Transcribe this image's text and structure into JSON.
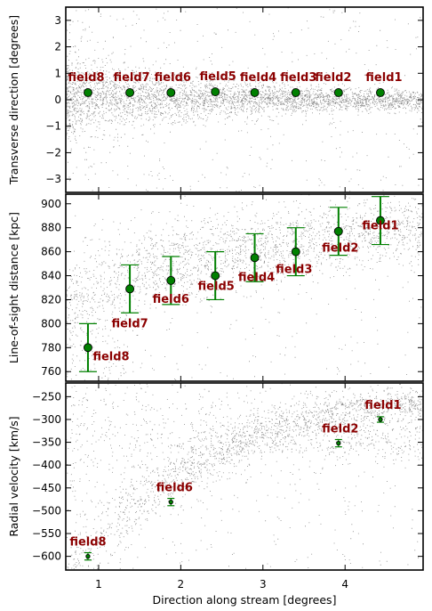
{
  "colors": {
    "field": "#8b0000",
    "marker": "#008000",
    "error": "#008000",
    "stars": "#8c8c8c"
  },
  "chart_data": [
    {
      "type": "scatter",
      "panel": "top",
      "ylabel": "Transverse direction [degrees]",
      "xlim": [
        0.6,
        4.95
      ],
      "ylim": [
        -3.5,
        3.5
      ],
      "yticks": [
        -3,
        -2,
        -1,
        0,
        1,
        2,
        3
      ],
      "points": [
        {
          "label": "field8",
          "x": 0.87,
          "y": 0.27
        },
        {
          "label": "field7",
          "x": 1.38,
          "y": 0.27
        },
        {
          "label": "field6",
          "x": 1.88,
          "y": 0.27
        },
        {
          "label": "field5",
          "x": 2.42,
          "y": 0.3
        },
        {
          "label": "field4",
          "x": 2.9,
          "y": 0.27
        },
        {
          "label": "field3",
          "x": 3.4,
          "y": 0.27
        },
        {
          "label": "field2",
          "x": 3.92,
          "y": 0.27
        },
        {
          "label": "field1",
          "x": 4.43,
          "y": 0.27
        }
      ]
    },
    {
      "type": "scatter",
      "panel": "middle",
      "ylabel": "Line-of-sight distance [kpc]",
      "xlim": [
        0.6,
        4.95
      ],
      "ylim": [
        752,
        908
      ],
      "yticks": [
        760,
        780,
        800,
        820,
        840,
        860,
        880,
        900
      ],
      "points": [
        {
          "label": "field8",
          "x": 0.87,
          "y": 780,
          "err": 20
        },
        {
          "label": "field7",
          "x": 1.38,
          "y": 829,
          "err": 20
        },
        {
          "label": "field6",
          "x": 1.88,
          "y": 836,
          "err": 20
        },
        {
          "label": "field5",
          "x": 2.42,
          "y": 840,
          "err": 20
        },
        {
          "label": "field4",
          "x": 2.9,
          "y": 855,
          "err": 20
        },
        {
          "label": "field3",
          "x": 3.4,
          "y": 860,
          "err": 20
        },
        {
          "label": "field2",
          "x": 3.92,
          "y": 877,
          "err": 20
        },
        {
          "label": "field1",
          "x": 4.43,
          "y": 886,
          "err": 20
        }
      ]
    },
    {
      "type": "scatter",
      "panel": "bottom",
      "ylabel": "Radial velocity [km/s]",
      "xlabel": "Direction along stream [degrees]",
      "xlim": [
        0.6,
        4.95
      ],
      "ylim": [
        -630,
        -220
      ],
      "yticks": [
        -600,
        -550,
        -500,
        -450,
        -400,
        -350,
        -300,
        -250
      ],
      "xticks": [
        1,
        2,
        3,
        4
      ],
      "points": [
        {
          "label": "field8",
          "x": 0.87,
          "y": -600,
          "err": 8
        },
        {
          "label": "field6",
          "x": 1.88,
          "y": -481,
          "err": 8
        },
        {
          "label": "field2",
          "x": 3.92,
          "y": -352,
          "err": 8
        },
        {
          "label": "field1",
          "x": 4.43,
          "y": -300,
          "err": 6
        }
      ]
    }
  ]
}
